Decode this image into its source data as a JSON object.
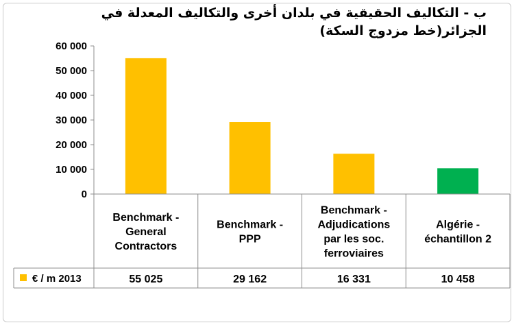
{
  "chart_data": {
    "type": "bar",
    "title_line1": "ب - التكاليف الحقيقية في بلدان أخرى والتكاليف المعدلة في",
    "title_line2": "الجزائر(خط مزدوج السكة)",
    "categories": [
      [
        "Benchmark -",
        "General",
        "Contractors"
      ],
      [
        "Benchmark -",
        "PPP"
      ],
      [
        "Benchmark -",
        "Adjudications",
        "par les soc.",
        "ferroviaires"
      ],
      [
        "Algérie -",
        "échantillon 2"
      ]
    ],
    "series": [
      {
        "name": "€ / m 2013",
        "values": [
          55025,
          29162,
          16331,
          10458
        ],
        "value_labels": [
          "55 025",
          "29 162",
          "16 331",
          "10 458"
        ],
        "colors": [
          "#ffc000",
          "#ffc000",
          "#ffc000",
          "#00b050"
        ],
        "legend_color": "#ffc000"
      }
    ],
    "ylim": [
      0,
      60000
    ],
    "yticks": [
      0,
      10000,
      20000,
      30000,
      40000,
      50000,
      60000
    ],
    "ytick_labels": [
      "0",
      "10 000",
      "20 000",
      "30 000",
      "40 000",
      "50 000",
      "60 000"
    ],
    "grid": false,
    "data_table": true
  }
}
